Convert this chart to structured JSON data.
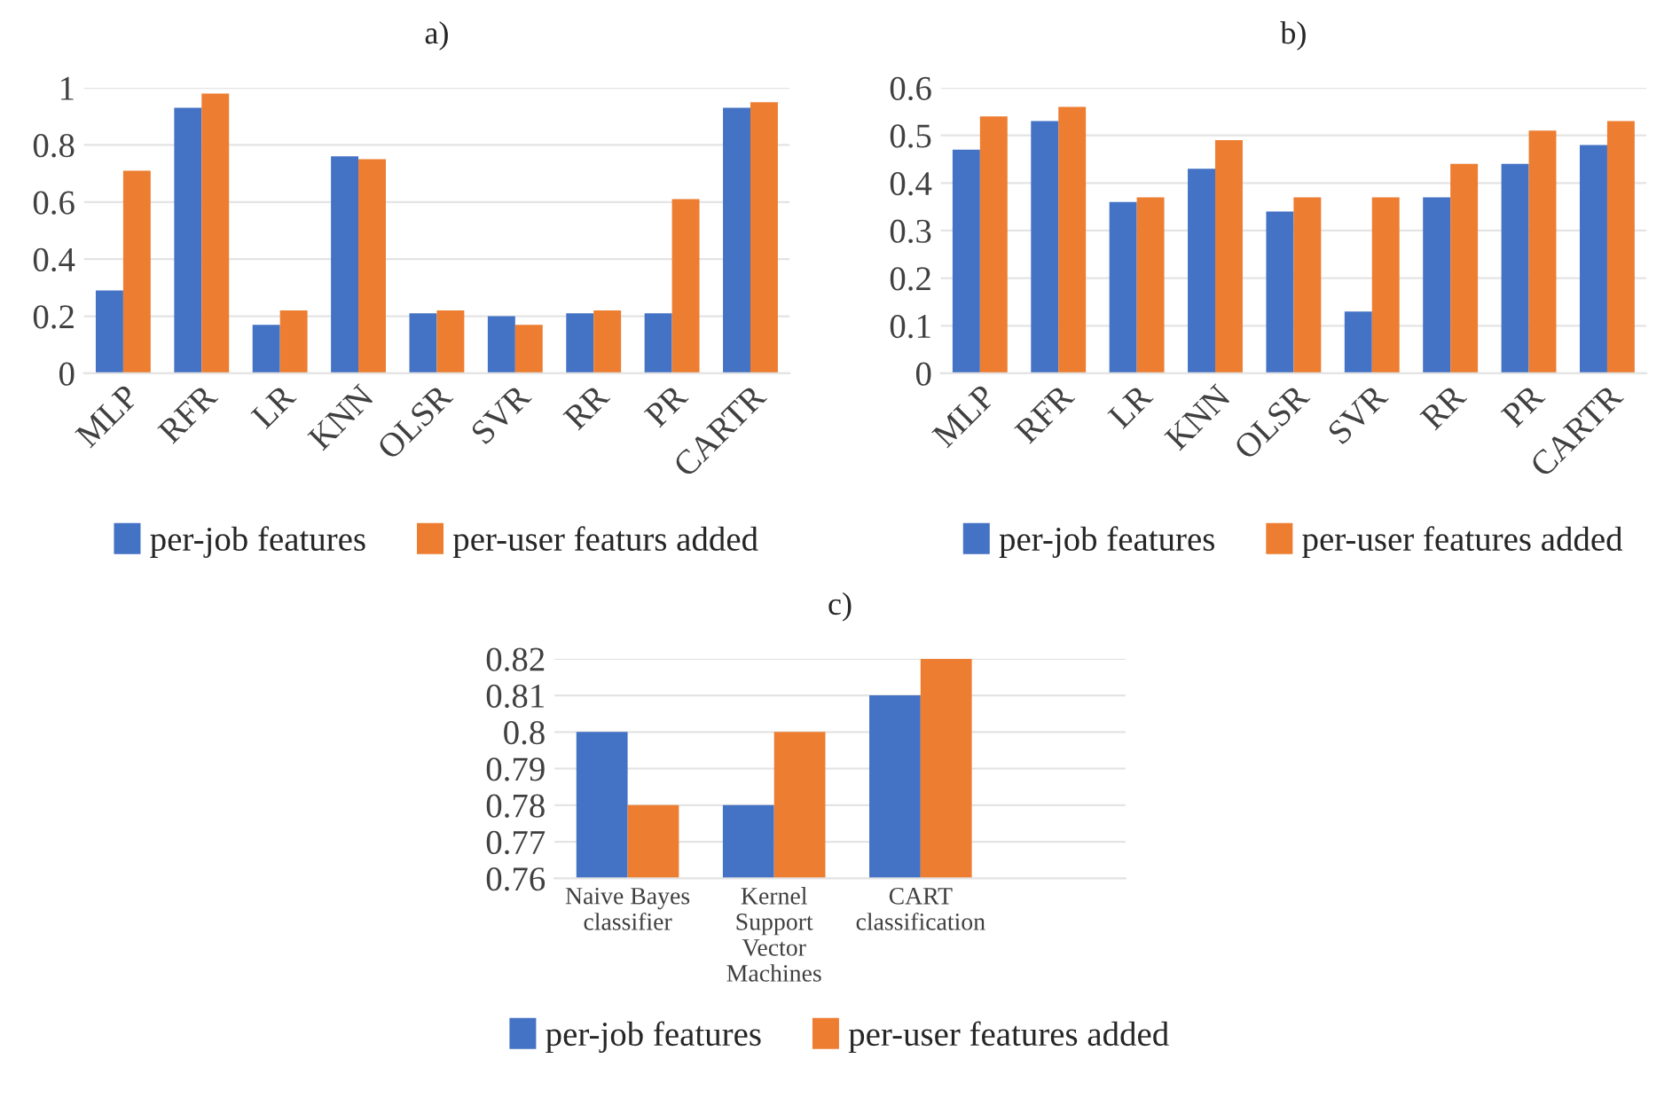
{
  "chart_data": [
    {
      "type": "bar",
      "title": "a)",
      "categories": [
        "MLP",
        "RFR",
        "LR",
        "KNN",
        "OLSR",
        "SVR",
        "RR",
        "PR",
        "CARTR"
      ],
      "series": [
        {
          "name": "per-job features",
          "color": "#4472c4",
          "values": [
            0.29,
            0.93,
            0.17,
            0.76,
            0.21,
            0.2,
            0.21,
            0.21,
            0.93
          ]
        },
        {
          "name": "per-user featurs added",
          "color": "#ed7d31",
          "values": [
            0.71,
            0.98,
            0.22,
            0.75,
            0.22,
            0.17,
            0.22,
            0.61,
            0.95
          ]
        }
      ],
      "ylim": [
        0,
        1
      ],
      "yticks": [
        0,
        {
          "value": 0.2,
          "label": "0.2"
        },
        {
          "value": 0.4,
          "label": "0.4"
        },
        {
          "value": 0.6,
          "label": "0.6"
        },
        {
          "value": 0.8,
          "label": "0.8"
        },
        1
      ],
      "grid": "y",
      "legend": "bottom"
    },
    {
      "type": "bar",
      "title": "b)",
      "categories": [
        "MLP",
        "RFR",
        "LR",
        "KNN",
        "OLSR",
        "SVR",
        "RR",
        "PR",
        "CARTR"
      ],
      "series": [
        {
          "name": "per-job features",
          "color": "#4472c4",
          "values": [
            0.47,
            0.53,
            0.36,
            0.43,
            0.34,
            0.13,
            0.37,
            0.44,
            0.48
          ]
        },
        {
          "name": "per-user features added",
          "color": "#ed7d31",
          "values": [
            0.54,
            0.56,
            0.37,
            0.49,
            0.37,
            0.37,
            0.44,
            0.51,
            0.53
          ]
        }
      ],
      "ylim": [
        0,
        0.6
      ],
      "yticks": [
        0,
        0.1,
        0.2,
        0.3,
        0.4,
        0.5,
        0.6
      ],
      "grid": "y",
      "legend": "bottom"
    },
    {
      "type": "bar",
      "title": "c)",
      "categories": [
        "Naive Bayes\nclassifier",
        "Kernel\nSupport\nVector\nMachines",
        "CART\nclassification"
      ],
      "series": [
        {
          "name": "per-job features",
          "color": "#4472c4",
          "values": [
            0.8,
            0.78,
            0.81
          ]
        },
        {
          "name": "per-user features added",
          "color": "#ed7d31",
          "values": [
            0.78,
            0.8,
            0.82
          ]
        }
      ],
      "ylim": [
        0.76,
        0.82
      ],
      "yticks": [
        0.76,
        0.77,
        0.78,
        0.79,
        {
          "value": 0.8,
          "label": "0.8"
        },
        0.81,
        0.82
      ],
      "grid": "y",
      "legend": "bottom"
    }
  ]
}
